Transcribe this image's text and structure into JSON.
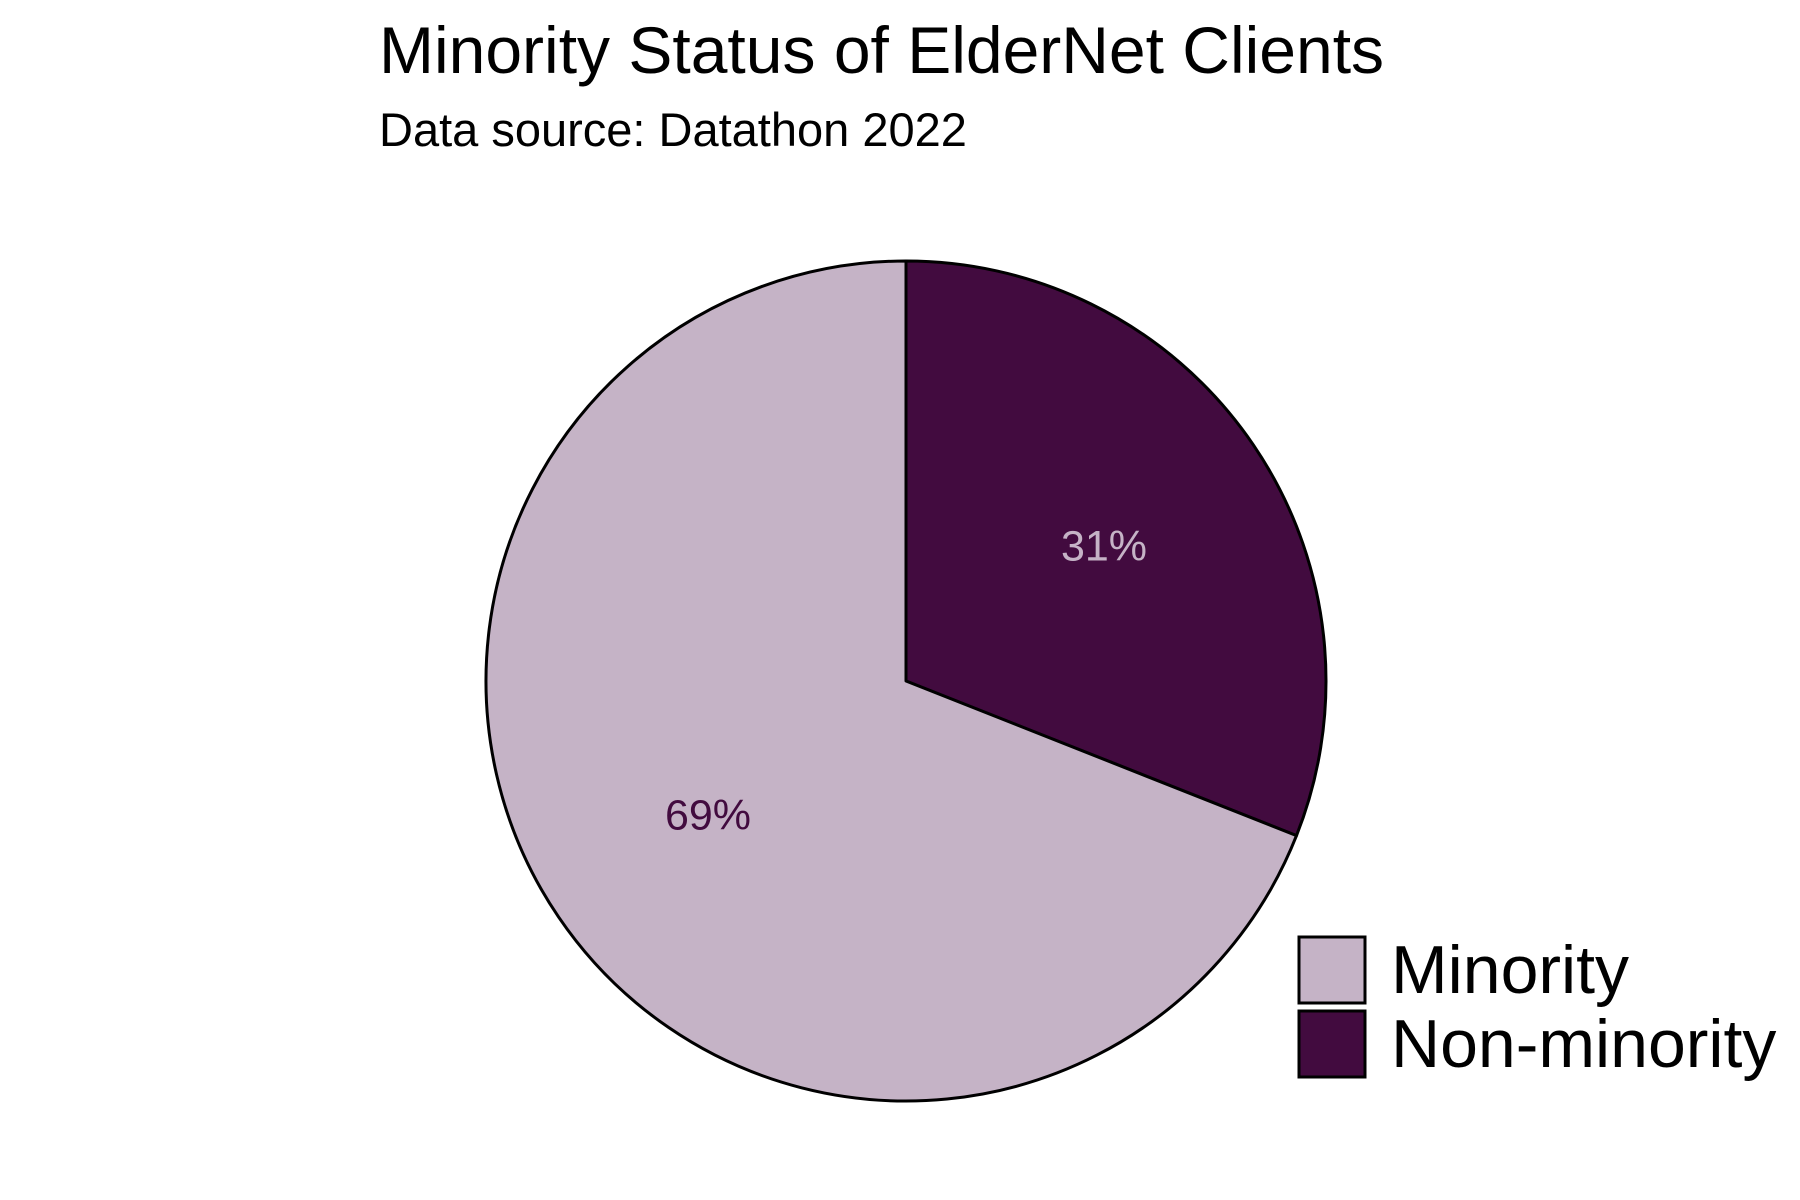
{
  "chart_data": {
    "type": "pie",
    "title": "Minority Status of ElderNet Clients",
    "subtitle": "Data source: Datathon 2022",
    "slices": [
      {
        "name": "Non-minority",
        "value": 31,
        "label": "31%",
        "color": "#420b3f",
        "label_color": "#c5b3c6"
      },
      {
        "name": "Minority",
        "value": 69,
        "label": "69%",
        "color": "#c5b3c6",
        "label_color": "#420b3f"
      }
    ],
    "legend": {
      "position": "bottom-right",
      "entries": [
        {
          "name": "Minority",
          "color": "#c5b3c6"
        },
        {
          "name": "Non-minority",
          "color": "#420b3f"
        }
      ]
    },
    "start_angle": "12 o'clock",
    "direction": "clockwise"
  }
}
